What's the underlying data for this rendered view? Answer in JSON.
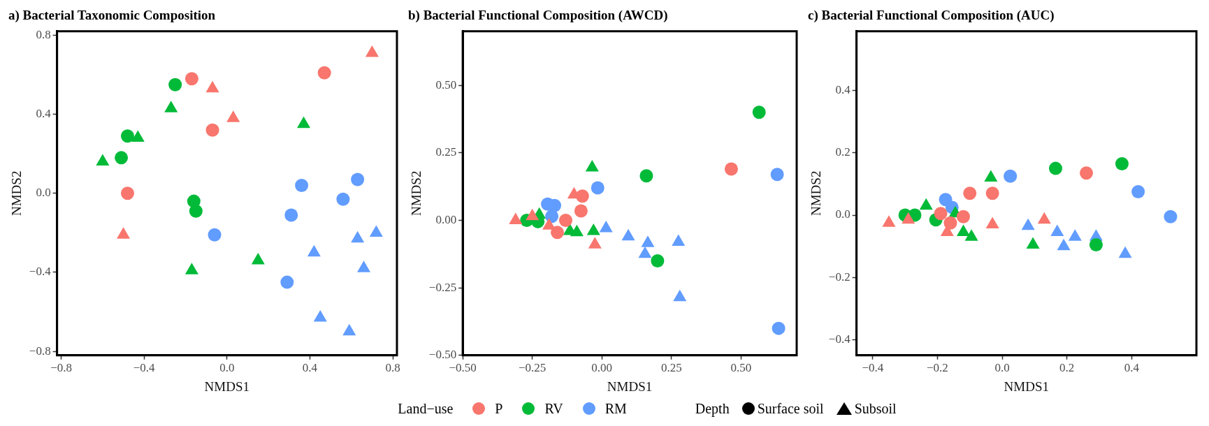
{
  "chart_data": [
    {
      "type": "scatter",
      "title": "a) Bacterial Taxonomic Composition",
      "xlabel": "NMDS1",
      "ylabel": "NMDS2",
      "xlim": [
        -0.82,
        0.82
      ],
      "ylim": [
        -0.82,
        0.82
      ],
      "xticks": [
        {
          "value": -0.8,
          "label": "−0.8"
        },
        {
          "value": -0.4,
          "label": "−0.4"
        },
        {
          "value": 0,
          "label": "0.0"
        },
        0.4,
        0.8
      ],
      "yticks": [
        {
          "value": -0.8,
          "label": "−0.8"
        },
        {
          "value": -0.4,
          "label": "−0.4"
        },
        {
          "value": 0,
          "label": "0.0"
        },
        0.4,
        0.8
      ],
      "legend": "bottom",
      "legend_title": "Land−use",
      "annotations": [
        "Depth",
        "Surface soil",
        "Subsoil"
      ],
      "series": [
        {
          "name": "P",
          "color": "#f8766d",
          "marker": "circle",
          "x": [
            -0.17,
            0.47,
            -0.07,
            -0.48
          ],
          "values": [
            0.58,
            0.61,
            0.32,
            0.0
          ]
        },
        {
          "color": "#f8766d",
          "marker": "triangle",
          "x": [
            0.7,
            -0.07,
            0.03,
            -0.5
          ],
          "values": [
            0.71,
            0.53,
            0.38,
            -0.21
          ]
        },
        {
          "name": "RV",
          "color": "#00ba38",
          "marker": "circle",
          "x": [
            -0.25,
            -0.48,
            -0.51,
            -0.16,
            -0.15
          ],
          "values": [
            0.55,
            0.29,
            0.18,
            -0.04,
            -0.09
          ]
        },
        {
          "color": "#00ba38",
          "marker": "triangle",
          "x": [
            -0.27,
            -0.43,
            -0.6,
            0.37,
            0.15,
            -0.17
          ],
          "values": [
            0.43,
            0.28,
            0.16,
            0.35,
            -0.34,
            -0.39
          ]
        },
        {
          "name": "RM",
          "color": "#619cff",
          "marker": "circle",
          "x": [
            0.36,
            0.63,
            0.56,
            0.31,
            -0.06,
            0.29
          ],
          "values": [
            0.04,
            0.07,
            -0.03,
            -0.11,
            -0.21,
            -0.45
          ]
        },
        {
          "color": "#619cff",
          "marker": "triangle",
          "x": [
            0.72,
            0.63,
            0.42,
            0.66,
            0.45,
            0.59
          ],
          "values": [
            -0.2,
            -0.23,
            -0.3,
            -0.38,
            -0.63,
            -0.7
          ]
        }
      ]
    },
    {
      "type": "scatter",
      "title": "b) Bacterial Functional Composition (AWCD)",
      "xlabel": "NMDS1",
      "ylabel": "NMDS2",
      "xlim": [
        -0.5,
        0.7
      ],
      "ylim": [
        -0.5,
        0.7
      ],
      "xticks": [
        {
          "value": -0.5,
          "label": "−0.50"
        },
        {
          "value": -0.25,
          "label": "−0.25"
        },
        {
          "value": 0,
          "label": "0.00"
        },
        0.25,
        {
          "value": 0.5,
          "label": "0.50"
        }
      ],
      "yticks": [
        {
          "value": -0.5,
          "label": "−0.50"
        },
        {
          "value": -0.25,
          "label": "−0.25"
        },
        {
          "value": 0,
          "label": "0.00"
        },
        0.25,
        {
          "value": 0.5,
          "label": "0.50"
        }
      ],
      "series": [
        {
          "color": "#f8766d",
          "marker": "circle",
          "x": [
            0.465,
            -0.07,
            -0.075,
            -0.13,
            -0.16
          ],
          "values": [
            0.19,
            0.09,
            0.035,
            0.0,
            -0.045
          ]
        },
        {
          "color": "#f8766d",
          "marker": "triangle",
          "x": [
            -0.31,
            -0.25,
            -0.1,
            -0.025,
            -0.19
          ],
          "values": [
            0.0,
            0.015,
            0.095,
            -0.09,
            -0.02
          ]
        },
        {
          "color": "#00ba38",
          "marker": "circle",
          "x": [
            0.565,
            0.16,
            0.2,
            -0.27,
            -0.23
          ],
          "values": [
            0.4,
            0.165,
            -0.15,
            0.0,
            -0.005
          ]
        },
        {
          "color": "#00ba38",
          "marker": "triangle",
          "x": [
            -0.035,
            -0.225,
            -0.115,
            -0.09,
            -0.03
          ],
          "values": [
            0.195,
            0.02,
            -0.04,
            -0.045,
            -0.04
          ]
        },
        {
          "color": "#619cff",
          "marker": "circle",
          "x": [
            -0.015,
            -0.195,
            -0.17,
            -0.18,
            0.63,
            0.635
          ],
          "values": [
            0.12,
            0.06,
            0.055,
            0.015,
            0.17,
            -0.4
          ]
        },
        {
          "color": "#619cff",
          "marker": "triangle",
          "x": [
            0.015,
            0.095,
            0.165,
            0.275,
            0.155,
            0.28
          ],
          "values": [
            -0.03,
            -0.06,
            -0.085,
            -0.08,
            -0.125,
            -0.285
          ]
        }
      ]
    },
    {
      "type": "scatter",
      "title": "c) Bacterial Functional Composition (AUC)",
      "xlabel": "NMDS1",
      "ylabel": "NMDS2",
      "xlim": [
        -0.45,
        0.6
      ],
      "ylim": [
        -0.45,
        0.59
      ],
      "xticks": [
        {
          "value": -0.4,
          "label": "−0.4"
        },
        {
          "value": -0.2,
          "label": "−0.2"
        },
        {
          "value": 0,
          "label": "0.0"
        },
        0.2,
        0.4
      ],
      "yticks": [
        {
          "value": -0.4,
          "label": "−0.4"
        },
        {
          "value": -0.2,
          "label": "−0.2"
        },
        {
          "value": 0,
          "label": "0.0"
        },
        0.2,
        0.4
      ],
      "series": [
        {
          "color": "#f8766d",
          "marker": "circle",
          "x": [
            0.26,
            -0.1,
            -0.03,
            -0.12,
            -0.16,
            -0.19
          ],
          "values": [
            0.135,
            0.07,
            0.07,
            -0.005,
            -0.025,
            0.005
          ]
        },
        {
          "color": "#f8766d",
          "marker": "triangle",
          "x": [
            -0.35,
            -0.29,
            -0.17,
            -0.03,
            0.13
          ],
          "values": [
            -0.025,
            -0.015,
            -0.055,
            -0.03,
            -0.015
          ]
        },
        {
          "color": "#00ba38",
          "marker": "circle",
          "x": [
            0.37,
            0.165,
            -0.3,
            -0.27,
            -0.205,
            0.29
          ],
          "values": [
            0.165,
            0.15,
            0.0,
            0.0,
            -0.015,
            -0.095
          ]
        },
        {
          "color": "#00ba38",
          "marker": "triangle",
          "x": [
            -0.035,
            -0.235,
            -0.145,
            -0.12,
            -0.095,
            0.095
          ],
          "values": [
            0.12,
            0.03,
            0.005,
            -0.055,
            -0.07,
            -0.095
          ]
        },
        {
          "color": "#619cff",
          "marker": "circle",
          "x": [
            0.025,
            -0.175,
            -0.155,
            0.42,
            0.52
          ],
          "values": [
            0.125,
            0.05,
            0.025,
            0.075,
            -0.005
          ]
        },
        {
          "color": "#619cff",
          "marker": "triangle",
          "x": [
            0.08,
            0.17,
            0.225,
            0.29,
            0.19,
            0.38
          ],
          "values": [
            -0.035,
            -0.055,
            -0.07,
            -0.07,
            -0.1,
            -0.125
          ]
        }
      ]
    }
  ]
}
